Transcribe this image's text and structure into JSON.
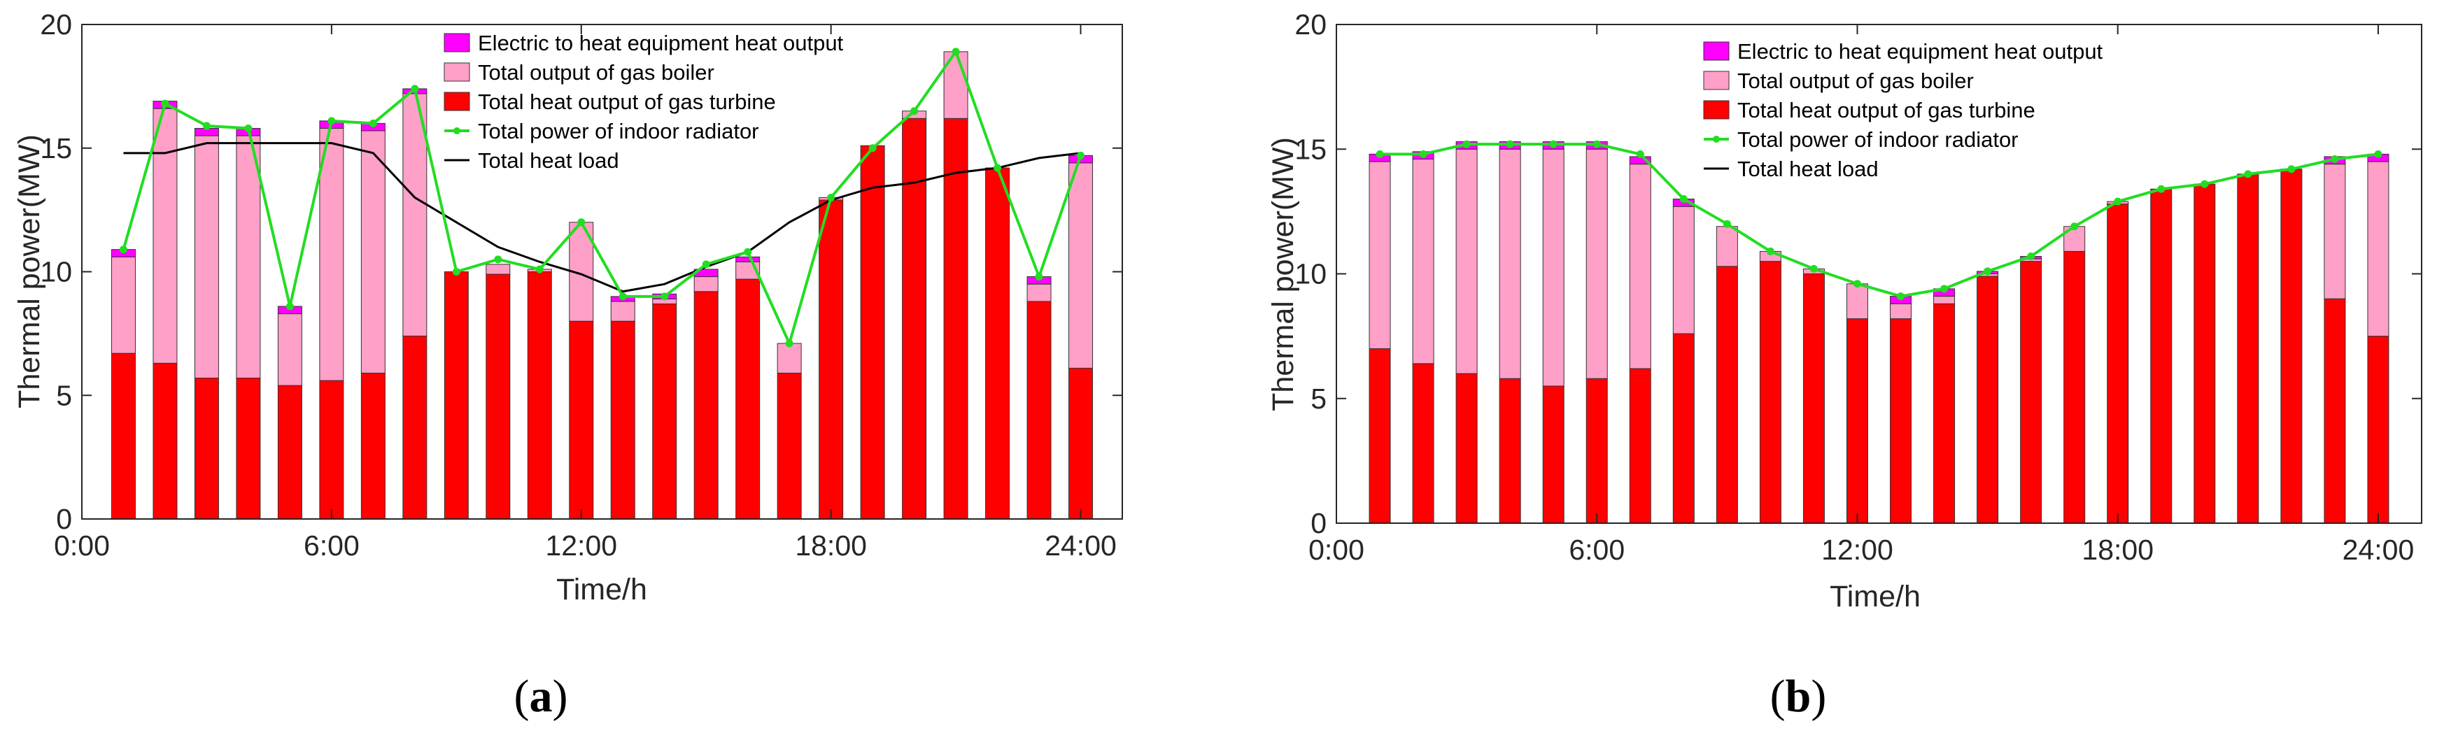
{
  "chart_data": [
    {
      "type": "bar",
      "panel_label": "a",
      "stacked": true,
      "xlabel": "Time/h",
      "ylabel": "Thermal power(MW)",
      "ylim": [
        0,
        20
      ],
      "y_ticks": [
        "0",
        "5",
        "10",
        "15",
        "20"
      ],
      "x_ticks": [
        "0:00",
        "6:00",
        "12:00",
        "18:00",
        "24:00"
      ],
      "hours": [
        1,
        2,
        3,
        4,
        5,
        6,
        7,
        8,
        9,
        10,
        11,
        12,
        13,
        14,
        15,
        16,
        17,
        18,
        19,
        20,
        21,
        22,
        23,
        24
      ],
      "legend_placement": "top-center",
      "series": [
        {
          "name": "Electric to heat equipment heat output",
          "color": "#ff00ff",
          "kind": "bar",
          "values": [
            0.3,
            0.3,
            0.3,
            0.3,
            0.3,
            0.3,
            0.3,
            0.2,
            0,
            0,
            0,
            0,
            0.2,
            0.2,
            0.3,
            0.2,
            0,
            0,
            0,
            0,
            0,
            0,
            0.3,
            0.3
          ]
        },
        {
          "name": "Total output of gas boiler",
          "color": "#ffa0c8",
          "kind": "bar",
          "values": [
            3.9,
            10.3,
            9.8,
            9.8,
            2.9,
            10.2,
            9.8,
            9.8,
            0,
            0.4,
            0.1,
            4.0,
            0.8,
            0.2,
            0.6,
            0.7,
            1.2,
            0.1,
            0,
            0.3,
            2.7,
            0,
            0.7,
            8.3
          ]
        },
        {
          "name": "Total heat output of gas turbine",
          "color": "#ff0000",
          "kind": "bar",
          "values": [
            6.7,
            6.3,
            5.7,
            5.7,
            5.4,
            5.6,
            5.9,
            7.4,
            10.0,
            9.9,
            10.0,
            8.0,
            8.0,
            8.7,
            9.2,
            9.7,
            5.9,
            12.9,
            15.1,
            16.2,
            16.2,
            14.2,
            8.8,
            6.1
          ]
        },
        {
          "name": "Total power of indoor radiator",
          "color": "#22dd22",
          "kind": "line",
          "values": [
            10.9,
            16.8,
            15.9,
            15.8,
            8.6,
            16.1,
            16.0,
            17.4,
            10.0,
            10.5,
            10.1,
            12.0,
            9.0,
            9.0,
            10.3,
            10.8,
            7.1,
            13.0,
            15.0,
            16.5,
            18.9,
            14.2,
            9.8,
            14.7
          ]
        },
        {
          "name": "Total heat load",
          "color": "#000000",
          "kind": "line",
          "values": [
            14.8,
            14.8,
            15.2,
            15.2,
            15.2,
            15.2,
            14.8,
            13.0,
            12.0,
            11.0,
            10.4,
            9.9,
            9.2,
            9.5,
            10.2,
            10.8,
            12.0,
            12.9,
            13.4,
            13.6,
            14.0,
            14.2,
            14.6,
            14.8
          ]
        }
      ]
    },
    {
      "type": "bar",
      "panel_label": "b",
      "stacked": true,
      "xlabel": "Time/h",
      "ylabel": "Thermal power(MW)",
      "ylim": [
        0,
        20
      ],
      "y_ticks": [
        "0",
        "5",
        "10",
        "15",
        "20"
      ],
      "x_ticks": [
        "0:00",
        "6:00",
        "12:00",
        "18:00",
        "24:00"
      ],
      "hours": [
        1,
        2,
        3,
        4,
        5,
        6,
        7,
        8,
        9,
        10,
        11,
        12,
        13,
        14,
        15,
        16,
        17,
        18,
        19,
        20,
        21,
        22,
        23,
        24
      ],
      "legend_placement": "top-center",
      "series": [
        {
          "name": "Electric to heat equipment heat output",
          "color": "#ff00ff",
          "kind": "bar",
          "values": [
            0.3,
            0.3,
            0.3,
            0.3,
            0.3,
            0.3,
            0.3,
            0.3,
            0,
            0,
            0,
            0,
            0.3,
            0.3,
            0.1,
            0.1,
            0,
            0,
            0,
            0,
            0,
            0,
            0.3,
            0.3
          ]
        },
        {
          "name": "Total output of gas boiler",
          "color": "#ffa0c8",
          "kind": "bar",
          "values": [
            7.5,
            8.2,
            9.0,
            9.2,
            9.5,
            9.2,
            8.2,
            5.1,
            1.6,
            0.4,
            0.2,
            1.4,
            0.6,
            0.3,
            0.1,
            0.1,
            1.0,
            0.1,
            0,
            0,
            0,
            0,
            5.4,
            7.0
          ]
        },
        {
          "name": "Total heat output of gas turbine",
          "color": "#ff0000",
          "kind": "bar",
          "values": [
            7.0,
            6.4,
            6.0,
            5.8,
            5.5,
            5.8,
            6.2,
            7.6,
            10.3,
            10.5,
            10.0,
            8.2,
            8.2,
            8.8,
            9.9,
            10.5,
            10.9,
            12.8,
            13.4,
            13.6,
            14.0,
            14.2,
            9.0,
            7.5
          ]
        },
        {
          "name": "Total power of indoor radiator",
          "color": "#22dd22",
          "kind": "line",
          "values": [
            14.8,
            14.8,
            15.2,
            15.2,
            15.2,
            15.2,
            14.8,
            13.0,
            12.0,
            10.9,
            10.2,
            9.6,
            9.1,
            9.4,
            10.1,
            10.7,
            11.9,
            12.9,
            13.4,
            13.6,
            14.0,
            14.2,
            14.6,
            14.8
          ]
        },
        {
          "name": "Total heat load",
          "color": "#000000",
          "kind": "line",
          "values": [
            14.8,
            14.8,
            15.2,
            15.2,
            15.2,
            15.2,
            14.8,
            13.0,
            12.0,
            10.9,
            10.2,
            9.6,
            9.1,
            9.4,
            10.1,
            10.7,
            11.9,
            12.9,
            13.4,
            13.6,
            14.0,
            14.2,
            14.6,
            14.8
          ]
        }
      ]
    }
  ],
  "captions": {
    "a": {
      "open": "(",
      "label": "a",
      "close": ")"
    },
    "b": {
      "open": "(",
      "label": "b",
      "close": ")"
    }
  }
}
